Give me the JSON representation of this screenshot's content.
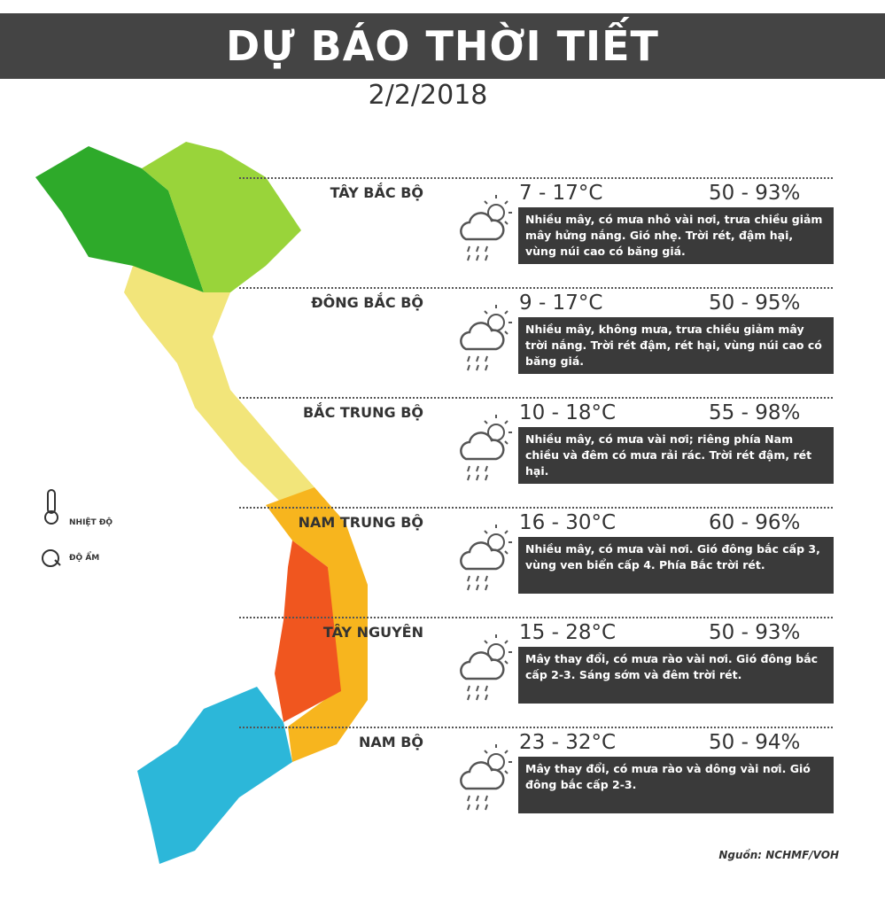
{
  "header": {
    "title": "DỰ BÁO THỜI TIẾT",
    "date": "2/2/2018"
  },
  "legend": {
    "temperature": "NHIỆT ĐỘ",
    "humidity": "ĐỘ ẨM"
  },
  "regions": [
    {
      "name": "TÂY BẮC BỘ",
      "temperature": "7 - 17°C",
      "humidity": "50 - 93%",
      "description": "Nhiều mây, có mưa nhỏ vài nơi, trưa chiều giảm mây hửng nắng. Gió nhẹ. Trời rét, đậm hại, vùng núi cao có băng giá."
    },
    {
      "name": "ĐÔNG BẮC BỘ",
      "temperature": "9 - 17°C",
      "humidity": "50 - 95%",
      "description": "Nhiều mây, không mưa, trưa chiều giảm mây trời nắng. Trời rét đậm, rét hại, vùng núi cao có băng giá."
    },
    {
      "name": "BẮC TRUNG BỘ",
      "temperature": "10 - 18°C",
      "humidity": "55 - 98%",
      "description": "Nhiều mây, có mưa vài nơi; riêng phía Nam chiều và đêm có mưa rải rác. Trời rét đậm, rét hại."
    },
    {
      "name": "NAM TRUNG BỘ",
      "temperature": "16 - 30°C",
      "humidity": "60 - 96%",
      "description": "Nhiều mây, có mưa vài nơi. Gió đông bắc cấp 3, vùng ven biển cấp 4. Phía Bắc trời rét."
    },
    {
      "name": "TÂY NGUYÊN",
      "temperature": "15 - 28°C",
      "humidity": "50 - 93%",
      "description": "Mây thay đổi, có mưa rào vài nơi. Gió đông bắc cấp 2-3. Sáng sớm và đêm trời rét."
    },
    {
      "name": "NAM BỘ",
      "temperature": "23 - 32°C",
      "humidity": "50 - 94%",
      "description": "Mây thay đổi, có mưa rào và dông vài nơi. Gió đông bắc cấp 2-3."
    }
  ],
  "source": "Nguồn: NCHMF/VOH"
}
